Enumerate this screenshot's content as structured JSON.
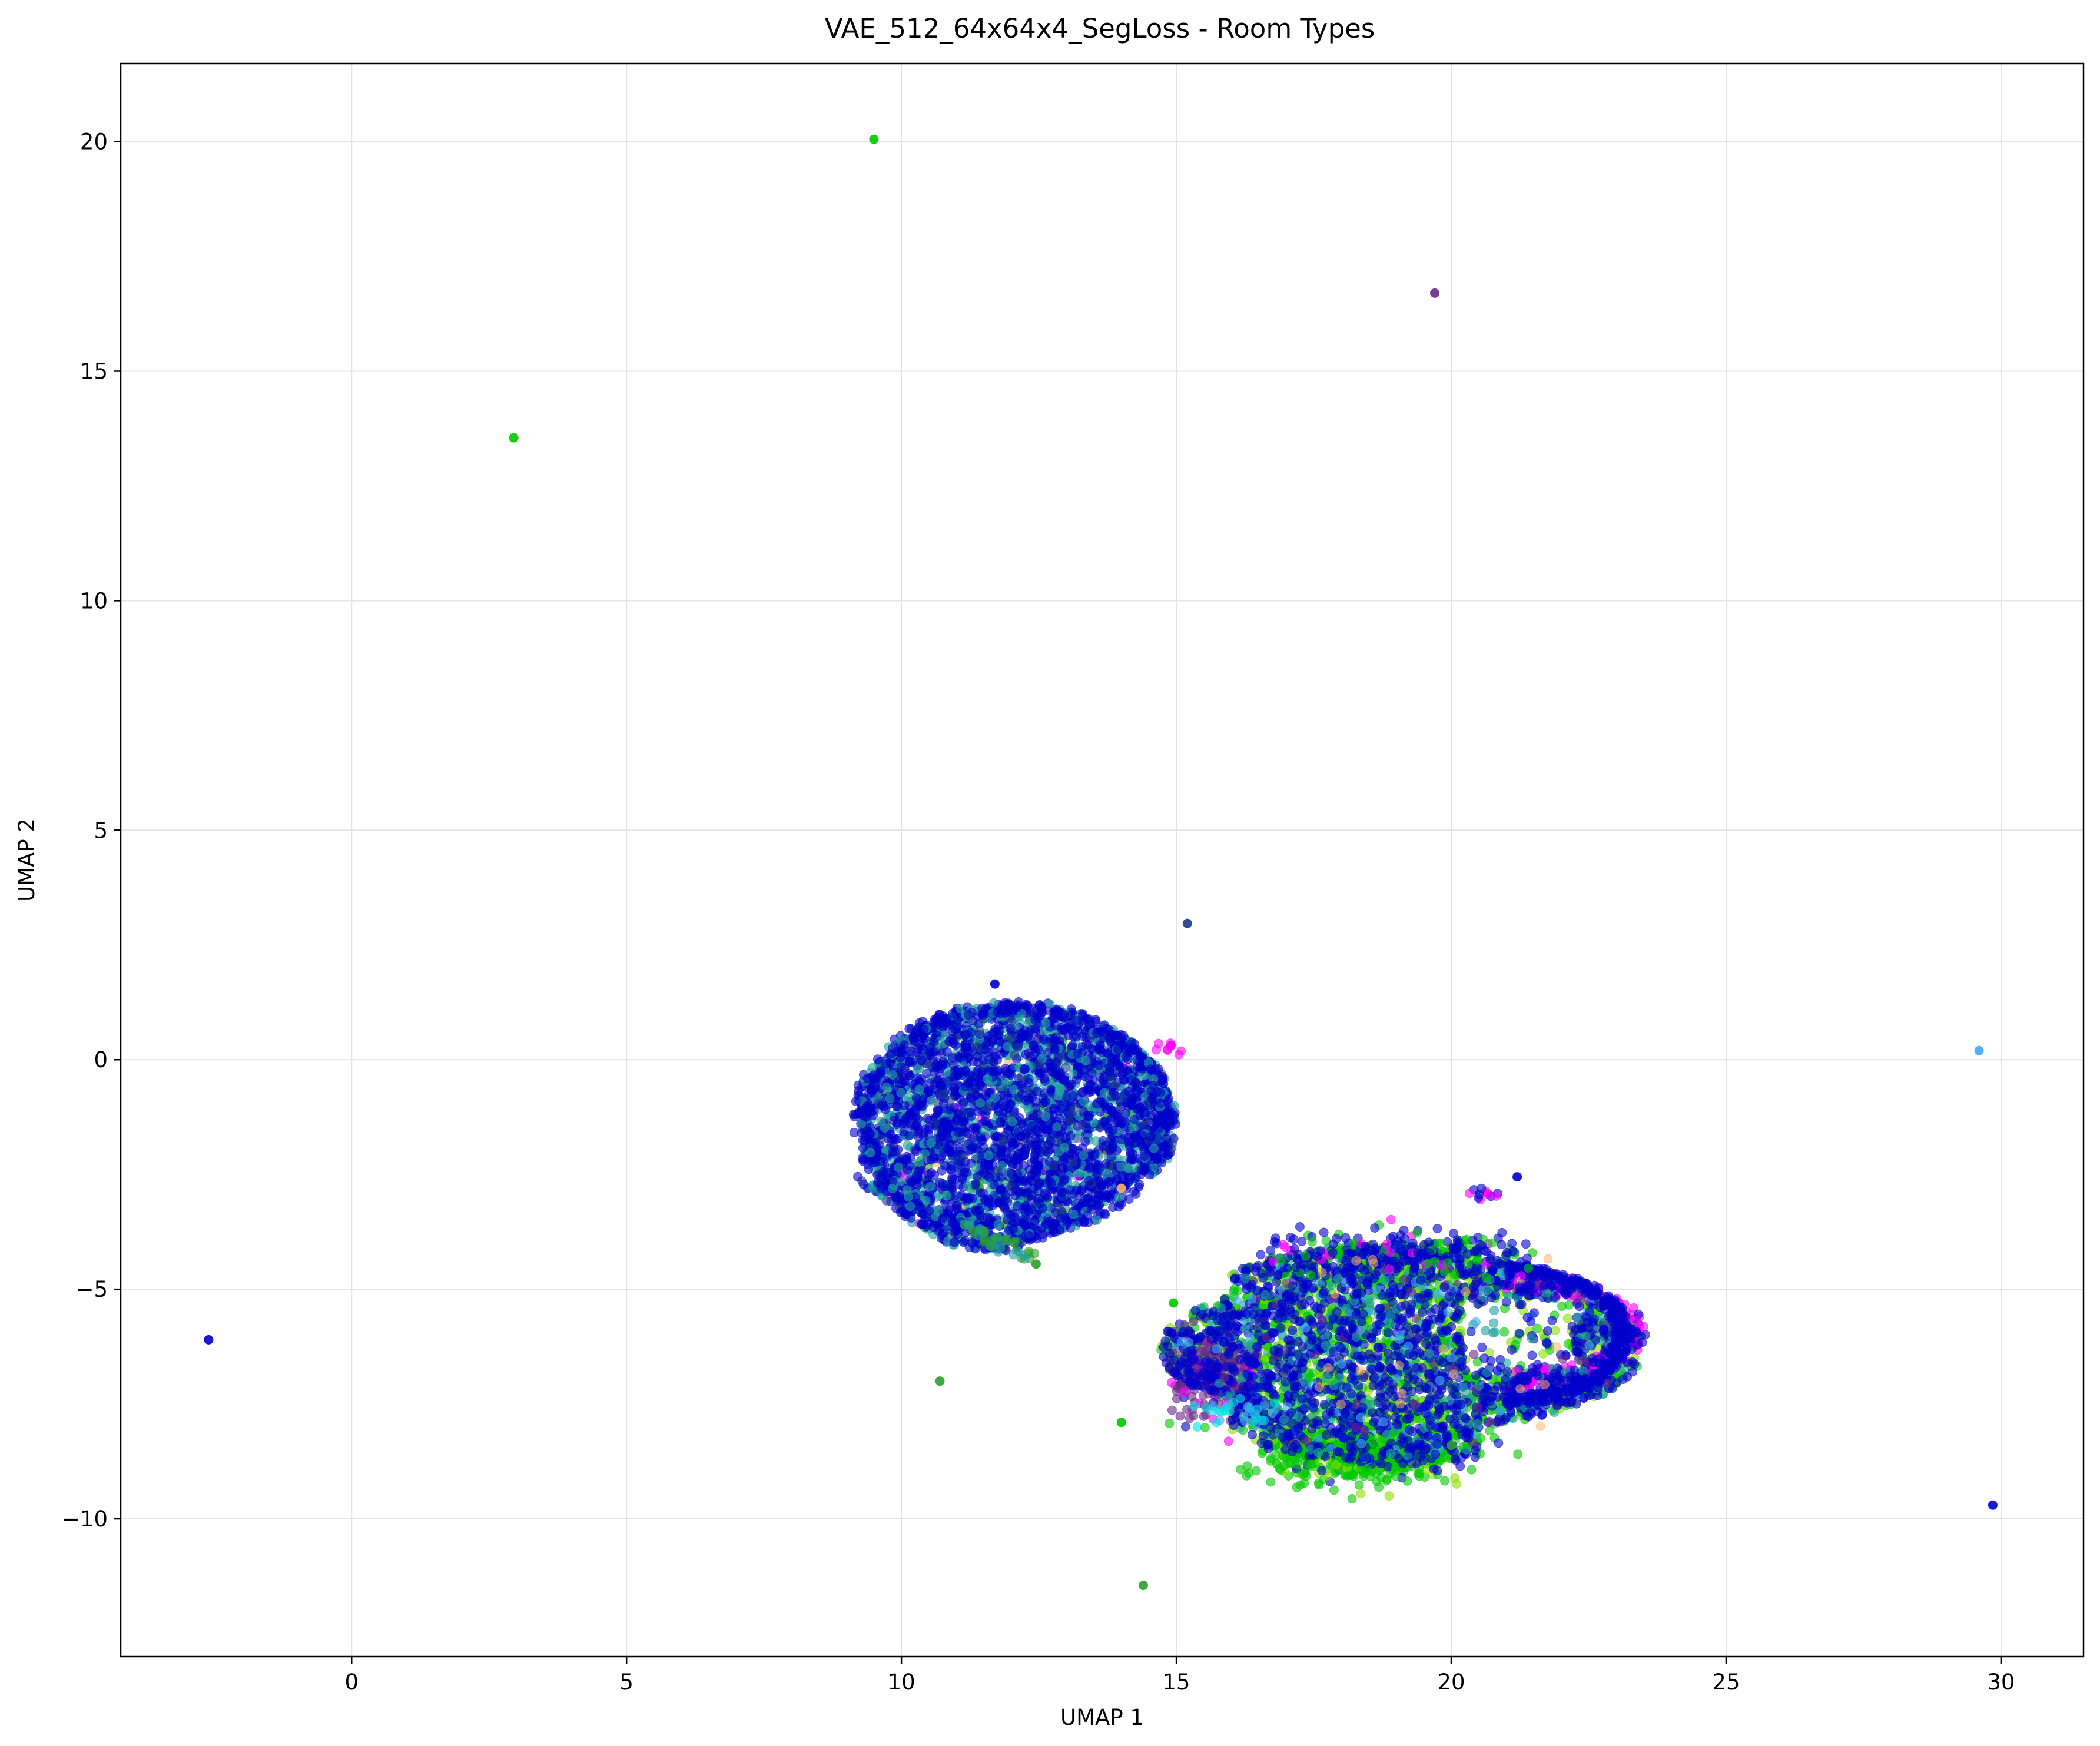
{
  "chart_data": {
    "type": "scatter",
    "title": "VAE_512_64x64x4_SegLoss - Room Types",
    "xlabel": "UMAP 1",
    "ylabel": "UMAP 2",
    "xlim": [
      -4.2,
      31.5
    ],
    "ylim": [
      -13.0,
      21.7
    ],
    "xticks": [
      0,
      5,
      10,
      15,
      20,
      25,
      30
    ],
    "yticks": [
      -10,
      -5,
      0,
      5,
      10,
      15,
      20
    ],
    "xtick_labels": [
      "0",
      "5",
      "10",
      "15",
      "20",
      "25",
      "30"
    ],
    "ytick_labels": [
      "−10",
      "−5",
      "0",
      "5",
      "10",
      "15",
      "20"
    ],
    "grid": true,
    "legend": "none",
    "marker_alpha": 0.6,
    "colors": {
      "blue": "#0000cc",
      "teal": "#20a0a0",
      "green": "#00c800",
      "lime": "#88e000",
      "magenta": "#ff00ff",
      "purple": "#6a2a8a",
      "skyblue": "#40a8f0",
      "orange": "#ffb060",
      "darkgreen": "#2e9e2e",
      "navy": "#1a3a8a",
      "cyan": "#00e0e0"
    },
    "clusters": [
      {
        "id": "upper-left-cluster",
        "center": [
          12.0,
          -1.3
        ],
        "extent_x": [
          9.3,
          15.0
        ],
        "extent_y": [
          -4.4,
          1.7
        ],
        "dominant_colors": [
          "blue",
          "teal"
        ],
        "minor_colors": [
          "magenta",
          "orange",
          "darkgreen"
        ]
      },
      {
        "id": "lower-right-cluster",
        "center": [
          19.0,
          -6.3
        ],
        "extent_x": [
          14.7,
          23.5
        ],
        "extent_y": [
          -9.4,
          -2.6
        ],
        "dominant_colors": [
          "green",
          "blue",
          "lime"
        ],
        "minor_colors": [
          "magenta",
          "teal",
          "purple",
          "skyblue",
          "orange",
          "cyan"
        ]
      }
    ],
    "outliers": [
      {
        "x": 9.5,
        "y": 20.05,
        "color": "green"
      },
      {
        "x": 2.95,
        "y": 13.55,
        "color": "green"
      },
      {
        "x": 19.7,
        "y": 16.7,
        "color": "purple"
      },
      {
        "x": 15.2,
        "y": 2.97,
        "color": "navy"
      },
      {
        "x": 29.6,
        "y": 0.2,
        "color": "skyblue"
      },
      {
        "x": -2.6,
        "y": -6.1,
        "color": "blue"
      },
      {
        "x": 10.7,
        "y": -7.0,
        "color": "darkgreen"
      },
      {
        "x": 14.0,
        "y": -7.9,
        "color": "green"
      },
      {
        "x": 14.4,
        "y": -11.45,
        "color": "darkgreen"
      },
      {
        "x": 29.85,
        "y": -9.7,
        "color": "blue"
      },
      {
        "x": 21.2,
        "y": -2.55,
        "color": "blue"
      },
      {
        "x": 20.0,
        "y": -8.4,
        "color": "darkgreen"
      },
      {
        "x": 14.0,
        "y": -2.8,
        "color": "orange"
      },
      {
        "x": 11.7,
        "y": 1.65,
        "color": "blue"
      },
      {
        "x": 12.45,
        "y": -4.45,
        "color": "darkgreen"
      },
      {
        "x": 14.95,
        "y": -5.3,
        "color": "green"
      }
    ]
  }
}
